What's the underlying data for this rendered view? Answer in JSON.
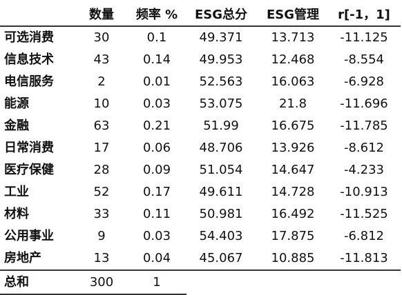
{
  "table": {
    "headers": [
      "",
      "数量",
      "频率 %",
      "ESG总分",
      "ESG管理",
      "r[-1，1]"
    ],
    "rows": [
      [
        "可选消费",
        "30",
        "0.1",
        "49.371",
        "13.713",
        "-11.125"
      ],
      [
        "信息技术",
        "43",
        "0.14",
        "49.953",
        "12.468",
        "-8.554"
      ],
      [
        "电信服务",
        "2",
        "0.01",
        "52.563",
        "16.063",
        "-6.928"
      ],
      [
        "能源",
        "10",
        "0.03",
        "53.075",
        "21.8",
        "-11.696"
      ],
      [
        "金融",
        "63",
        "0.21",
        "51.99",
        "16.675",
        "-11.785"
      ],
      [
        "日常消费",
        "17",
        "0.06",
        "48.706",
        "13.926",
        "-8.612"
      ],
      [
        "医疗保健",
        "28",
        "0.09",
        "51.054",
        "14.647",
        "-4.233"
      ],
      [
        "工业",
        "52",
        "0.17",
        "49.611",
        "14.728",
        "-10.913"
      ],
      [
        "材料",
        "33",
        "0.11",
        "50.981",
        "16.492",
        "-11.525"
      ],
      [
        "公用事业",
        "9",
        "0.03",
        "54.403",
        "17.875",
        "-6.812"
      ],
      [
        "房地产",
        "13",
        "0.04",
        "45.067",
        "10.885",
        "-11.813"
      ]
    ],
    "total": {
      "label": "总和",
      "count": "300",
      "frequency": "1"
    }
  }
}
